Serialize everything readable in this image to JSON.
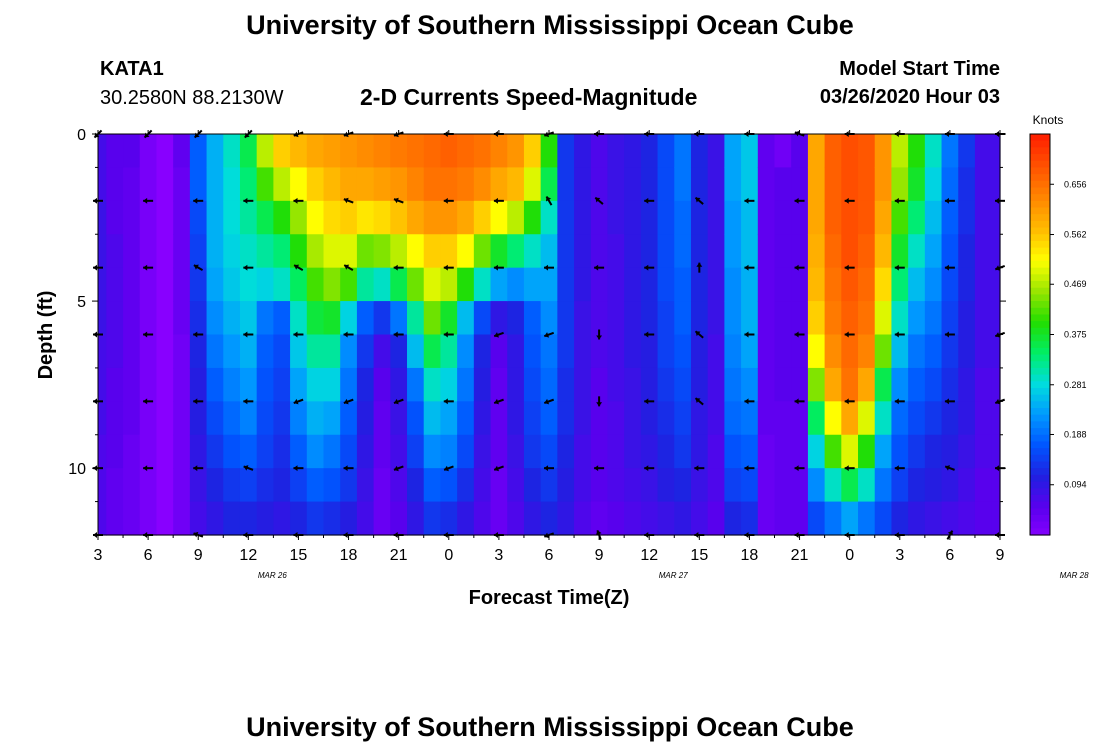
{
  "header": {
    "title": "University of Southern Mississippi Ocean Cube",
    "station": "KATA1",
    "coords": "30.2580N 88.2130W",
    "subtitle": "2-D Currents Speed-Magnitude",
    "start_label": "Model Start Time",
    "start_value": "03/26/2020 Hour 03"
  },
  "footer": {
    "title": "University of Southern Mississippi Ocean Cube"
  },
  "colors": {
    "colormap": [
      "#8800ff",
      "#5a00ee",
      "#2020e0",
      "#0055ff",
      "#0099ff",
      "#00dddd",
      "#00ee66",
      "#22dd00",
      "#99e600",
      "#ffff00",
      "#ffbb00",
      "#ff8800",
      "#ff5500",
      "#ff2200"
    ]
  },
  "chart_data": {
    "type": "heatmap",
    "xlabel": "Forecast Time(Z)",
    "ylabel": "Depth (ft)",
    "colorbar_title": "Knots",
    "colorbar_ticks": [
      "0.656",
      "0.562",
      "0.469",
      "0.375",
      "0.281",
      "0.188",
      "0.094"
    ],
    "colorbar_values": [
      0.656,
      0.562,
      0.469,
      0.375,
      0.281,
      0.188,
      0.094
    ],
    "color_range": [
      0.0,
      0.75
    ],
    "x_ticks": [
      "3",
      "6",
      "9",
      "12",
      "15",
      "18",
      "21",
      "0",
      "3",
      "6",
      "9",
      "12",
      "15",
      "18",
      "21",
      "0",
      "3",
      "6",
      "9"
    ],
    "date_labels": [
      {
        "label": "MAR 26",
        "hour": 12
      },
      {
        "label": "MAR 27",
        "hour": 36
      },
      {
        "label": "MAR 28",
        "hour": 60
      }
    ],
    "x_range_hours": [
      3,
      57
    ],
    "y_ticks": [
      "0",
      "5",
      "10"
    ],
    "y_tick_values": [
      0,
      5,
      10
    ],
    "y_range": [
      0,
      12
    ],
    "rows": 12,
    "cols": 55,
    "speed_anchors": [
      {
        "hour": 3,
        "profile": [
          0.08,
          0.08,
          0.09,
          0.09,
          0.09,
          0.09,
          0.08,
          0.08,
          0.08,
          0.07,
          0.07,
          0.07
        ]
      },
      {
        "hour": 4,
        "profile": [
          0.06,
          0.06,
          0.06,
          0.07,
          0.07,
          0.07,
          0.07,
          0.06,
          0.06,
          0.06,
          0.05,
          0.05
        ]
      },
      {
        "hour": 5,
        "profile": [
          0.06,
          0.05,
          0.05,
          0.05,
          0.05,
          0.05,
          0.05,
          0.05,
          0.05,
          0.04,
          0.04,
          0.04
        ]
      },
      {
        "hour": 6,
        "profile": [
          0.02,
          0.02,
          0.02,
          0.02,
          0.02,
          0.02,
          0.02,
          0.02,
          0.02,
          0.02,
          0.02,
          0.02
        ]
      },
      {
        "hour": 7,
        "profile": [
          0.0,
          0.0,
          0.0,
          0.0,
          0.0,
          0.0,
          0.0,
          0.0,
          0.0,
          0.0,
          0.0,
          0.0
        ]
      },
      {
        "hour": 8,
        "profile": [
          0.05,
          0.04,
          0.04,
          0.04,
          0.04,
          0.04,
          0.03,
          0.03,
          0.03,
          0.03,
          0.03,
          0.03
        ]
      },
      {
        "hour": 9,
        "profile": [
          0.18,
          0.18,
          0.16,
          0.15,
          0.14,
          0.13,
          0.12,
          0.11,
          0.11,
          0.1,
          0.09,
          0.08
        ]
      },
      {
        "hour": 10,
        "profile": [
          0.25,
          0.25,
          0.25,
          0.25,
          0.24,
          0.22,
          0.2,
          0.18,
          0.16,
          0.14,
          0.12,
          0.1
        ]
      },
      {
        "hour": 11,
        "profile": [
          0.3,
          0.29,
          0.29,
          0.28,
          0.27,
          0.25,
          0.23,
          0.21,
          0.19,
          0.17,
          0.14,
          0.12
        ]
      },
      {
        "hour": 12,
        "profile": [
          0.36,
          0.34,
          0.32,
          0.3,
          0.29,
          0.27,
          0.25,
          0.23,
          0.21,
          0.18,
          0.15,
          0.12
        ]
      },
      {
        "hour": 13,
        "profile": [
          0.48,
          0.42,
          0.36,
          0.32,
          0.28,
          0.2,
          0.18,
          0.17,
          0.16,
          0.15,
          0.13,
          0.11
        ]
      },
      {
        "hour": 14,
        "profile": [
          0.56,
          0.48,
          0.4,
          0.34,
          0.3,
          0.18,
          0.16,
          0.15,
          0.14,
          0.13,
          0.12,
          0.1
        ]
      },
      {
        "hour": 15,
        "profile": [
          0.58,
          0.52,
          0.46,
          0.4,
          0.35,
          0.3,
          0.27,
          0.24,
          0.21,
          0.18,
          0.15,
          0.12
        ]
      },
      {
        "hour": 16,
        "profile": [
          0.6,
          0.56,
          0.52,
          0.47,
          0.42,
          0.37,
          0.32,
          0.28,
          0.25,
          0.22,
          0.18,
          0.14
        ]
      },
      {
        "hour": 17,
        "profile": [
          0.61,
          0.58,
          0.55,
          0.5,
          0.45,
          0.38,
          0.32,
          0.28,
          0.24,
          0.2,
          0.17,
          0.13
        ]
      },
      {
        "hour": 18,
        "profile": [
          0.62,
          0.6,
          0.56,
          0.5,
          0.42,
          0.28,
          0.22,
          0.2,
          0.18,
          0.16,
          0.14,
          0.11
        ]
      },
      {
        "hour": 19,
        "profile": [
          0.63,
          0.6,
          0.54,
          0.44,
          0.32,
          0.18,
          0.14,
          0.12,
          0.11,
          0.1,
          0.09,
          0.08
        ]
      },
      {
        "hour": 20,
        "profile": [
          0.64,
          0.61,
          0.55,
          0.45,
          0.3,
          0.14,
          0.08,
          0.06,
          0.05,
          0.05,
          0.04,
          0.04
        ]
      },
      {
        "hour": 21,
        "profile": [
          0.65,
          0.62,
          0.57,
          0.48,
          0.36,
          0.2,
          0.12,
          0.1,
          0.09,
          0.08,
          0.07,
          0.06
        ]
      },
      {
        "hour": 22,
        "profile": [
          0.66,
          0.64,
          0.6,
          0.52,
          0.44,
          0.32,
          0.26,
          0.2,
          0.17,
          0.15,
          0.12,
          0.1
        ]
      },
      {
        "hour": 23,
        "profile": [
          0.67,
          0.66,
          0.62,
          0.56,
          0.5,
          0.44,
          0.36,
          0.3,
          0.26,
          0.22,
          0.18,
          0.14
        ]
      },
      {
        "hour": 24,
        "profile": [
          0.68,
          0.66,
          0.62,
          0.56,
          0.48,
          0.38,
          0.32,
          0.28,
          0.24,
          0.21,
          0.17,
          0.13
        ]
      },
      {
        "hour": 25,
        "profile": [
          0.67,
          0.65,
          0.6,
          0.52,
          0.4,
          0.26,
          0.22,
          0.2,
          0.18,
          0.16,
          0.13,
          0.1
        ]
      },
      {
        "hour": 26,
        "profile": [
          0.66,
          0.63,
          0.56,
          0.44,
          0.3,
          0.16,
          0.12,
          0.11,
          0.1,
          0.09,
          0.08,
          0.07
        ]
      },
      {
        "hour": 27,
        "profile": [
          0.64,
          0.6,
          0.52,
          0.38,
          0.24,
          0.1,
          0.06,
          0.05,
          0.05,
          0.05,
          0.04,
          0.04
        ]
      },
      {
        "hour": 28,
        "profile": [
          0.62,
          0.58,
          0.48,
          0.34,
          0.22,
          0.12,
          0.1,
          0.1,
          0.1,
          0.09,
          0.08,
          0.07
        ]
      },
      {
        "hour": 29,
        "profile": [
          0.56,
          0.5,
          0.4,
          0.3,
          0.24,
          0.18,
          0.17,
          0.16,
          0.15,
          0.14,
          0.12,
          0.1
        ]
      },
      {
        "hour": 30,
        "profile": [
          0.4,
          0.36,
          0.3,
          0.26,
          0.24,
          0.22,
          0.2,
          0.19,
          0.18,
          0.16,
          0.14,
          0.12
        ]
      },
      {
        "hour": 31,
        "profile": [
          0.14,
          0.14,
          0.14,
          0.14,
          0.14,
          0.14,
          0.14,
          0.13,
          0.13,
          0.12,
          0.11,
          0.1
        ]
      },
      {
        "hour": 32,
        "profile": [
          0.1,
          0.1,
          0.1,
          0.1,
          0.1,
          0.09,
          0.09,
          0.09,
          0.09,
          0.08,
          0.08,
          0.07
        ]
      },
      {
        "hour": 33,
        "profile": [
          0.07,
          0.07,
          0.07,
          0.07,
          0.07,
          0.07,
          0.07,
          0.06,
          0.06,
          0.06,
          0.06,
          0.05
        ]
      },
      {
        "hour": 34,
        "profile": [
          0.09,
          0.09,
          0.09,
          0.08,
          0.08,
          0.08,
          0.08,
          0.08,
          0.07,
          0.07,
          0.07,
          0.06
        ]
      },
      {
        "hour": 35,
        "profile": [
          0.1,
          0.1,
          0.1,
          0.1,
          0.1,
          0.1,
          0.1,
          0.09,
          0.09,
          0.09,
          0.08,
          0.07
        ]
      },
      {
        "hour": 36,
        "profile": [
          0.12,
          0.12,
          0.12,
          0.12,
          0.12,
          0.12,
          0.11,
          0.11,
          0.11,
          0.1,
          0.09,
          0.08
        ]
      },
      {
        "hour": 37,
        "profile": [
          0.16,
          0.16,
          0.16,
          0.16,
          0.16,
          0.15,
          0.15,
          0.14,
          0.13,
          0.12,
          0.11,
          0.09
        ]
      },
      {
        "hour": 38,
        "profile": [
          0.2,
          0.2,
          0.19,
          0.19,
          0.18,
          0.18,
          0.17,
          0.16,
          0.15,
          0.14,
          0.12,
          0.1
        ]
      },
      {
        "hour": 39,
        "profile": [
          0.12,
          0.12,
          0.12,
          0.12,
          0.12,
          0.12,
          0.11,
          0.11,
          0.1,
          0.1,
          0.09,
          0.08
        ]
      },
      {
        "hour": 40,
        "profile": [
          0.09,
          0.09,
          0.09,
          0.09,
          0.09,
          0.09,
          0.08,
          0.08,
          0.08,
          0.07,
          0.07,
          0.06
        ]
      },
      {
        "hour": 41,
        "profile": [
          0.24,
          0.24,
          0.23,
          0.23,
          0.22,
          0.22,
          0.21,
          0.2,
          0.19,
          0.17,
          0.15,
          0.12
        ]
      },
      {
        "hour": 42,
        "profile": [
          0.27,
          0.27,
          0.26,
          0.26,
          0.25,
          0.25,
          0.24,
          0.22,
          0.2,
          0.18,
          0.16,
          0.13
        ]
      },
      {
        "hour": 43,
        "profile": [
          0.05,
          0.05,
          0.05,
          0.05,
          0.05,
          0.05,
          0.05,
          0.05,
          0.05,
          0.04,
          0.04,
          0.04
        ]
      },
      {
        "hour": 44,
        "profile": [
          0.03,
          0.06,
          0.06,
          0.06,
          0.06,
          0.06,
          0.06,
          0.06,
          0.05,
          0.05,
          0.05,
          0.05
        ]
      },
      {
        "hour": 45,
        "profile": [
          0.06,
          0.06,
          0.06,
          0.06,
          0.06,
          0.06,
          0.06,
          0.06,
          0.05,
          0.05,
          0.05,
          0.05
        ]
      },
      {
        "hour": 46,
        "profile": [
          0.6,
          0.6,
          0.6,
          0.59,
          0.58,
          0.56,
          0.52,
          0.45,
          0.35,
          0.28,
          0.22,
          0.16
        ]
      },
      {
        "hour": 47,
        "profile": [
          0.68,
          0.68,
          0.68,
          0.67,
          0.66,
          0.65,
          0.63,
          0.6,
          0.52,
          0.42,
          0.3,
          0.2
        ]
      },
      {
        "hour": 48,
        "profile": [
          0.7,
          0.7,
          0.7,
          0.7,
          0.69,
          0.68,
          0.67,
          0.66,
          0.6,
          0.5,
          0.36,
          0.24
        ]
      },
      {
        "hour": 49,
        "profile": [
          0.69,
          0.69,
          0.69,
          0.68,
          0.67,
          0.66,
          0.64,
          0.6,
          0.5,
          0.4,
          0.3,
          0.2
        ]
      },
      {
        "hour": 50,
        "profile": [
          0.62,
          0.62,
          0.6,
          0.58,
          0.55,
          0.5,
          0.44,
          0.36,
          0.3,
          0.24,
          0.2,
          0.16
        ]
      },
      {
        "hour": 51,
        "profile": [
          0.48,
          0.46,
          0.42,
          0.38,
          0.34,
          0.3,
          0.26,
          0.22,
          0.19,
          0.17,
          0.15,
          0.12
        ]
      },
      {
        "hour": 52,
        "profile": [
          0.4,
          0.38,
          0.34,
          0.3,
          0.26,
          0.23,
          0.2,
          0.18,
          0.16,
          0.14,
          0.12,
          0.1
        ]
      },
      {
        "hour": 53,
        "profile": [
          0.3,
          0.28,
          0.26,
          0.24,
          0.22,
          0.2,
          0.18,
          0.16,
          0.14,
          0.12,
          0.11,
          0.09
        ]
      },
      {
        "hour": 54,
        "profile": [
          0.2,
          0.19,
          0.18,
          0.17,
          0.16,
          0.15,
          0.14,
          0.13,
          0.12,
          0.11,
          0.1,
          0.08
        ]
      },
      {
        "hour": 55,
        "profile": [
          0.14,
          0.13,
          0.13,
          0.12,
          0.12,
          0.11,
          0.11,
          0.1,
          0.1,
          0.09,
          0.08,
          0.07
        ]
      },
      {
        "hour": 56,
        "profile": [
          0.08,
          0.08,
          0.08,
          0.08,
          0.08,
          0.08,
          0.08,
          0.07,
          0.07,
          0.07,
          0.06,
          0.06
        ]
      },
      {
        "hour": 57,
        "profile": [
          0.08,
          0.08,
          0.08,
          0.08,
          0.08,
          0.08,
          0.08,
          0.07,
          0.07,
          0.07,
          0.06,
          0.06
        ]
      }
    ],
    "vector_depths": [
      0,
      2,
      4,
      6,
      8,
      10,
      12
    ],
    "vector_hours": [
      3,
      6,
      9,
      12,
      15,
      18,
      21,
      24,
      27,
      30,
      33,
      36,
      39,
      42,
      45,
      48,
      51,
      54,
      57
    ],
    "vector_angles_deg": [
      [
        225,
        225,
        225,
        225,
        200,
        200,
        200,
        180,
        180,
        200,
        180,
        180,
        180,
        180,
        160,
        180,
        180,
        180,
        180
      ],
      [
        180,
        180,
        180,
        180,
        180,
        160,
        160,
        180,
        180,
        120,
        140,
        180,
        140,
        180,
        180,
        180,
        180,
        180,
        180
      ],
      [
        180,
        180,
        150,
        180,
        150,
        150,
        180,
        180,
        180,
        180,
        180,
        180,
        90,
        180,
        180,
        180,
        180,
        180,
        200
      ],
      [
        180,
        180,
        180,
        180,
        180,
        180,
        180,
        180,
        200,
        200,
        270,
        180,
        140,
        180,
        180,
        180,
        180,
        180,
        200
      ],
      [
        180,
        180,
        180,
        180,
        200,
        200,
        200,
        180,
        200,
        200,
        270,
        180,
        140,
        180,
        180,
        180,
        180,
        180,
        200
      ],
      [
        180,
        180,
        180,
        160,
        180,
        180,
        200,
        200,
        200,
        180,
        180,
        180,
        180,
        180,
        180,
        180,
        180,
        160,
        180
      ],
      [
        180,
        180,
        160,
        180,
        180,
        180,
        180,
        180,
        180,
        200,
        110,
        180,
        180,
        180,
        180,
        180,
        180,
        60,
        180
      ]
    ]
  }
}
